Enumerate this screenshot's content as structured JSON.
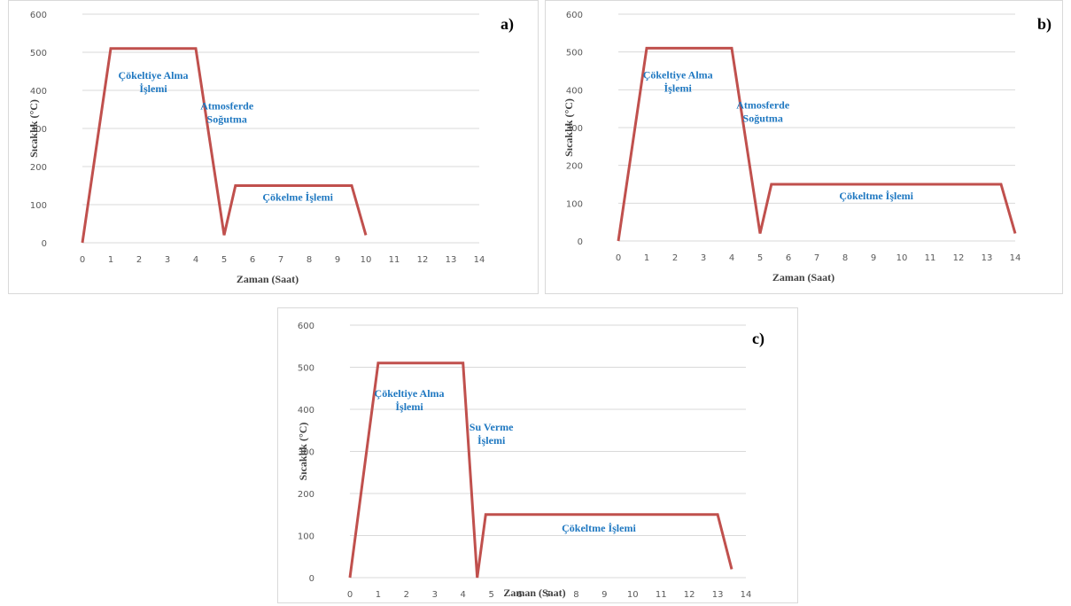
{
  "chart_data": [
    {
      "type": "line",
      "panel_label": "a)",
      "xlabel": "Zaman (Saat)",
      "ylabel": "Sıcaklık (°C)",
      "xlim": [
        0,
        14
      ],
      "ylim": [
        0,
        600
      ],
      "x_ticks": [
        "0",
        "1",
        "2",
        "3",
        "4",
        "5",
        "6",
        "7",
        "8",
        "9",
        "10",
        "11",
        "12",
        "13",
        "14"
      ],
      "y_ticks": [
        "0",
        "100",
        "200",
        "300",
        "400",
        "500",
        "600"
      ],
      "grid": "horizontal",
      "series": [
        {
          "points": [
            [
              0,
              0
            ],
            [
              1,
              510
            ],
            [
              4,
              510
            ],
            [
              5,
              20
            ],
            [
              5.4,
              150
            ],
            [
              9.5,
              150
            ],
            [
              10,
              20
            ]
          ]
        }
      ],
      "annotations": [
        {
          "lines": [
            "Çökeltiye Alma",
            "İşlemi"
          ],
          "x": 2.5,
          "y": 430
        },
        {
          "lines": [
            "Atmosferde",
            "Soğutma"
          ],
          "x": 5.1,
          "y": 350
        },
        {
          "lines": [
            "Çökelme İşlemi"
          ],
          "x": 7.6,
          "y": 110
        }
      ]
    },
    {
      "type": "line",
      "panel_label": "b)",
      "xlabel": "Zaman (Saat)",
      "ylabel": "Sıcaklık (°C)",
      "xlim": [
        0,
        14
      ],
      "ylim": [
        0,
        600
      ],
      "x_ticks": [
        "0",
        "1",
        "2",
        "3",
        "4",
        "5",
        "6",
        "7",
        "8",
        "9",
        "10",
        "11",
        "12",
        "13",
        "14"
      ],
      "y_ticks": [
        "0",
        "100",
        "200",
        "300",
        "400",
        "500",
        "600"
      ],
      "grid": "horizontal",
      "series": [
        {
          "points": [
            [
              0,
              0
            ],
            [
              1,
              510
            ],
            [
              4,
              510
            ],
            [
              5,
              20
            ],
            [
              5.4,
              150
            ],
            [
              13.5,
              150
            ],
            [
              14,
              20
            ]
          ]
        }
      ],
      "annotations": [
        {
          "lines": [
            "Çökeltiye Alma",
            "İşlemi"
          ],
          "x": 2.1,
          "y": 430
        },
        {
          "lines": [
            "Atmosferde",
            "Soğutma"
          ],
          "x": 5.1,
          "y": 350
        },
        {
          "lines": [
            "Çökeltme İşlemi"
          ],
          "x": 9.1,
          "y": 110
        }
      ]
    },
    {
      "type": "line",
      "panel_label": "c)",
      "xlabel": "Zaman (Saat)",
      "ylabel": "Sıcaklık (°C)",
      "xlim": [
        0,
        14
      ],
      "ylim": [
        0,
        600
      ],
      "x_ticks": [
        "0",
        "1",
        "2",
        "3",
        "4",
        "5",
        "6",
        "7",
        "8",
        "9",
        "10",
        "11",
        "12",
        "13",
        "14"
      ],
      "y_ticks": [
        "0",
        "100",
        "200",
        "300",
        "400",
        "500",
        "600"
      ],
      "grid": "horizontal",
      "series": [
        {
          "points": [
            [
              0,
              0
            ],
            [
              1,
              510
            ],
            [
              4,
              510
            ],
            [
              4.5,
              0
            ],
            [
              4.8,
              150
            ],
            [
              13,
              150
            ],
            [
              13.5,
              20
            ]
          ]
        }
      ],
      "annotations": [
        {
          "lines": [
            "Çökeltiye Alma",
            "İşlemi"
          ],
          "x": 2.1,
          "y": 430
        },
        {
          "lines": [
            "Su Verme",
            "İşlemi"
          ],
          "x": 5.0,
          "y": 350
        },
        {
          "lines": [
            "Çökeltme İşlemi"
          ],
          "x": 8.8,
          "y": 110
        }
      ]
    }
  ]
}
